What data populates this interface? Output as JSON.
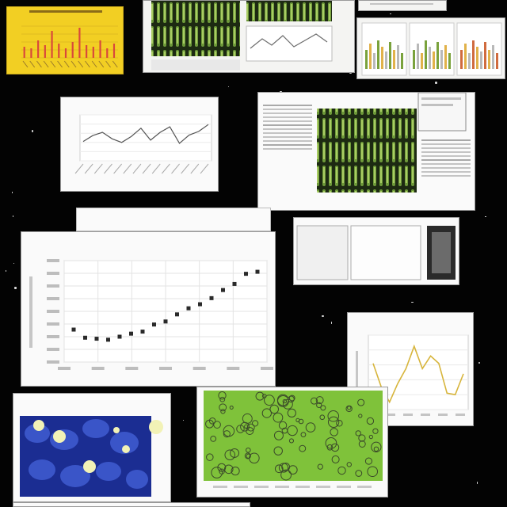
{
  "panels": {
    "main_scatter": {
      "title": "",
      "tab_label": "",
      "tab_sub": ""
    },
    "line_mid_left": {
      "title": ""
    },
    "line_right": {
      "title": ""
    }
  },
  "chart_data": [
    {
      "type": "scatter",
      "title": "",
      "xlabel": "",
      "ylabel": "",
      "x": [
        1,
        2,
        3,
        4,
        5,
        6,
        7,
        8,
        9,
        10,
        11,
        12,
        13,
        14,
        15,
        16,
        17
      ],
      "values": [
        0.32,
        0.24,
        0.23,
        0.22,
        0.25,
        0.28,
        0.3,
        0.37,
        0.4,
        0.47,
        0.53,
        0.57,
        0.63,
        0.71,
        0.77,
        0.87,
        0.89
      ],
      "ylim": [
        0,
        1
      ],
      "grid": true
    },
    {
      "type": "line",
      "title": "",
      "values": [
        0.42,
        0.55,
        0.62,
        0.48,
        0.4,
        0.53,
        0.71,
        0.45,
        0.62,
        0.74,
        0.38,
        0.56,
        0.64,
        0.79
      ],
      "ylim": [
        0,
        1
      ],
      "grid": true
    },
    {
      "type": "line",
      "title": "",
      "values": [
        0.62,
        0.3,
        0.1,
        0.35,
        0.55,
        0.85,
        0.55,
        0.72,
        0.62,
        0.22,
        0.2,
        0.48
      ],
      "ylim": [
        0,
        1
      ],
      "color": "#d7b53c",
      "grid": true
    },
    {
      "type": "bar",
      "title": "",
      "values": [
        0.35,
        0.3,
        0.55,
        0.4,
        0.85,
        0.45,
        0.3,
        0.5,
        0.95,
        0.4,
        0.35,
        0.55,
        0.3,
        0.45
      ],
      "color": "#d9483b",
      "background": "#f2d027"
    }
  ]
}
